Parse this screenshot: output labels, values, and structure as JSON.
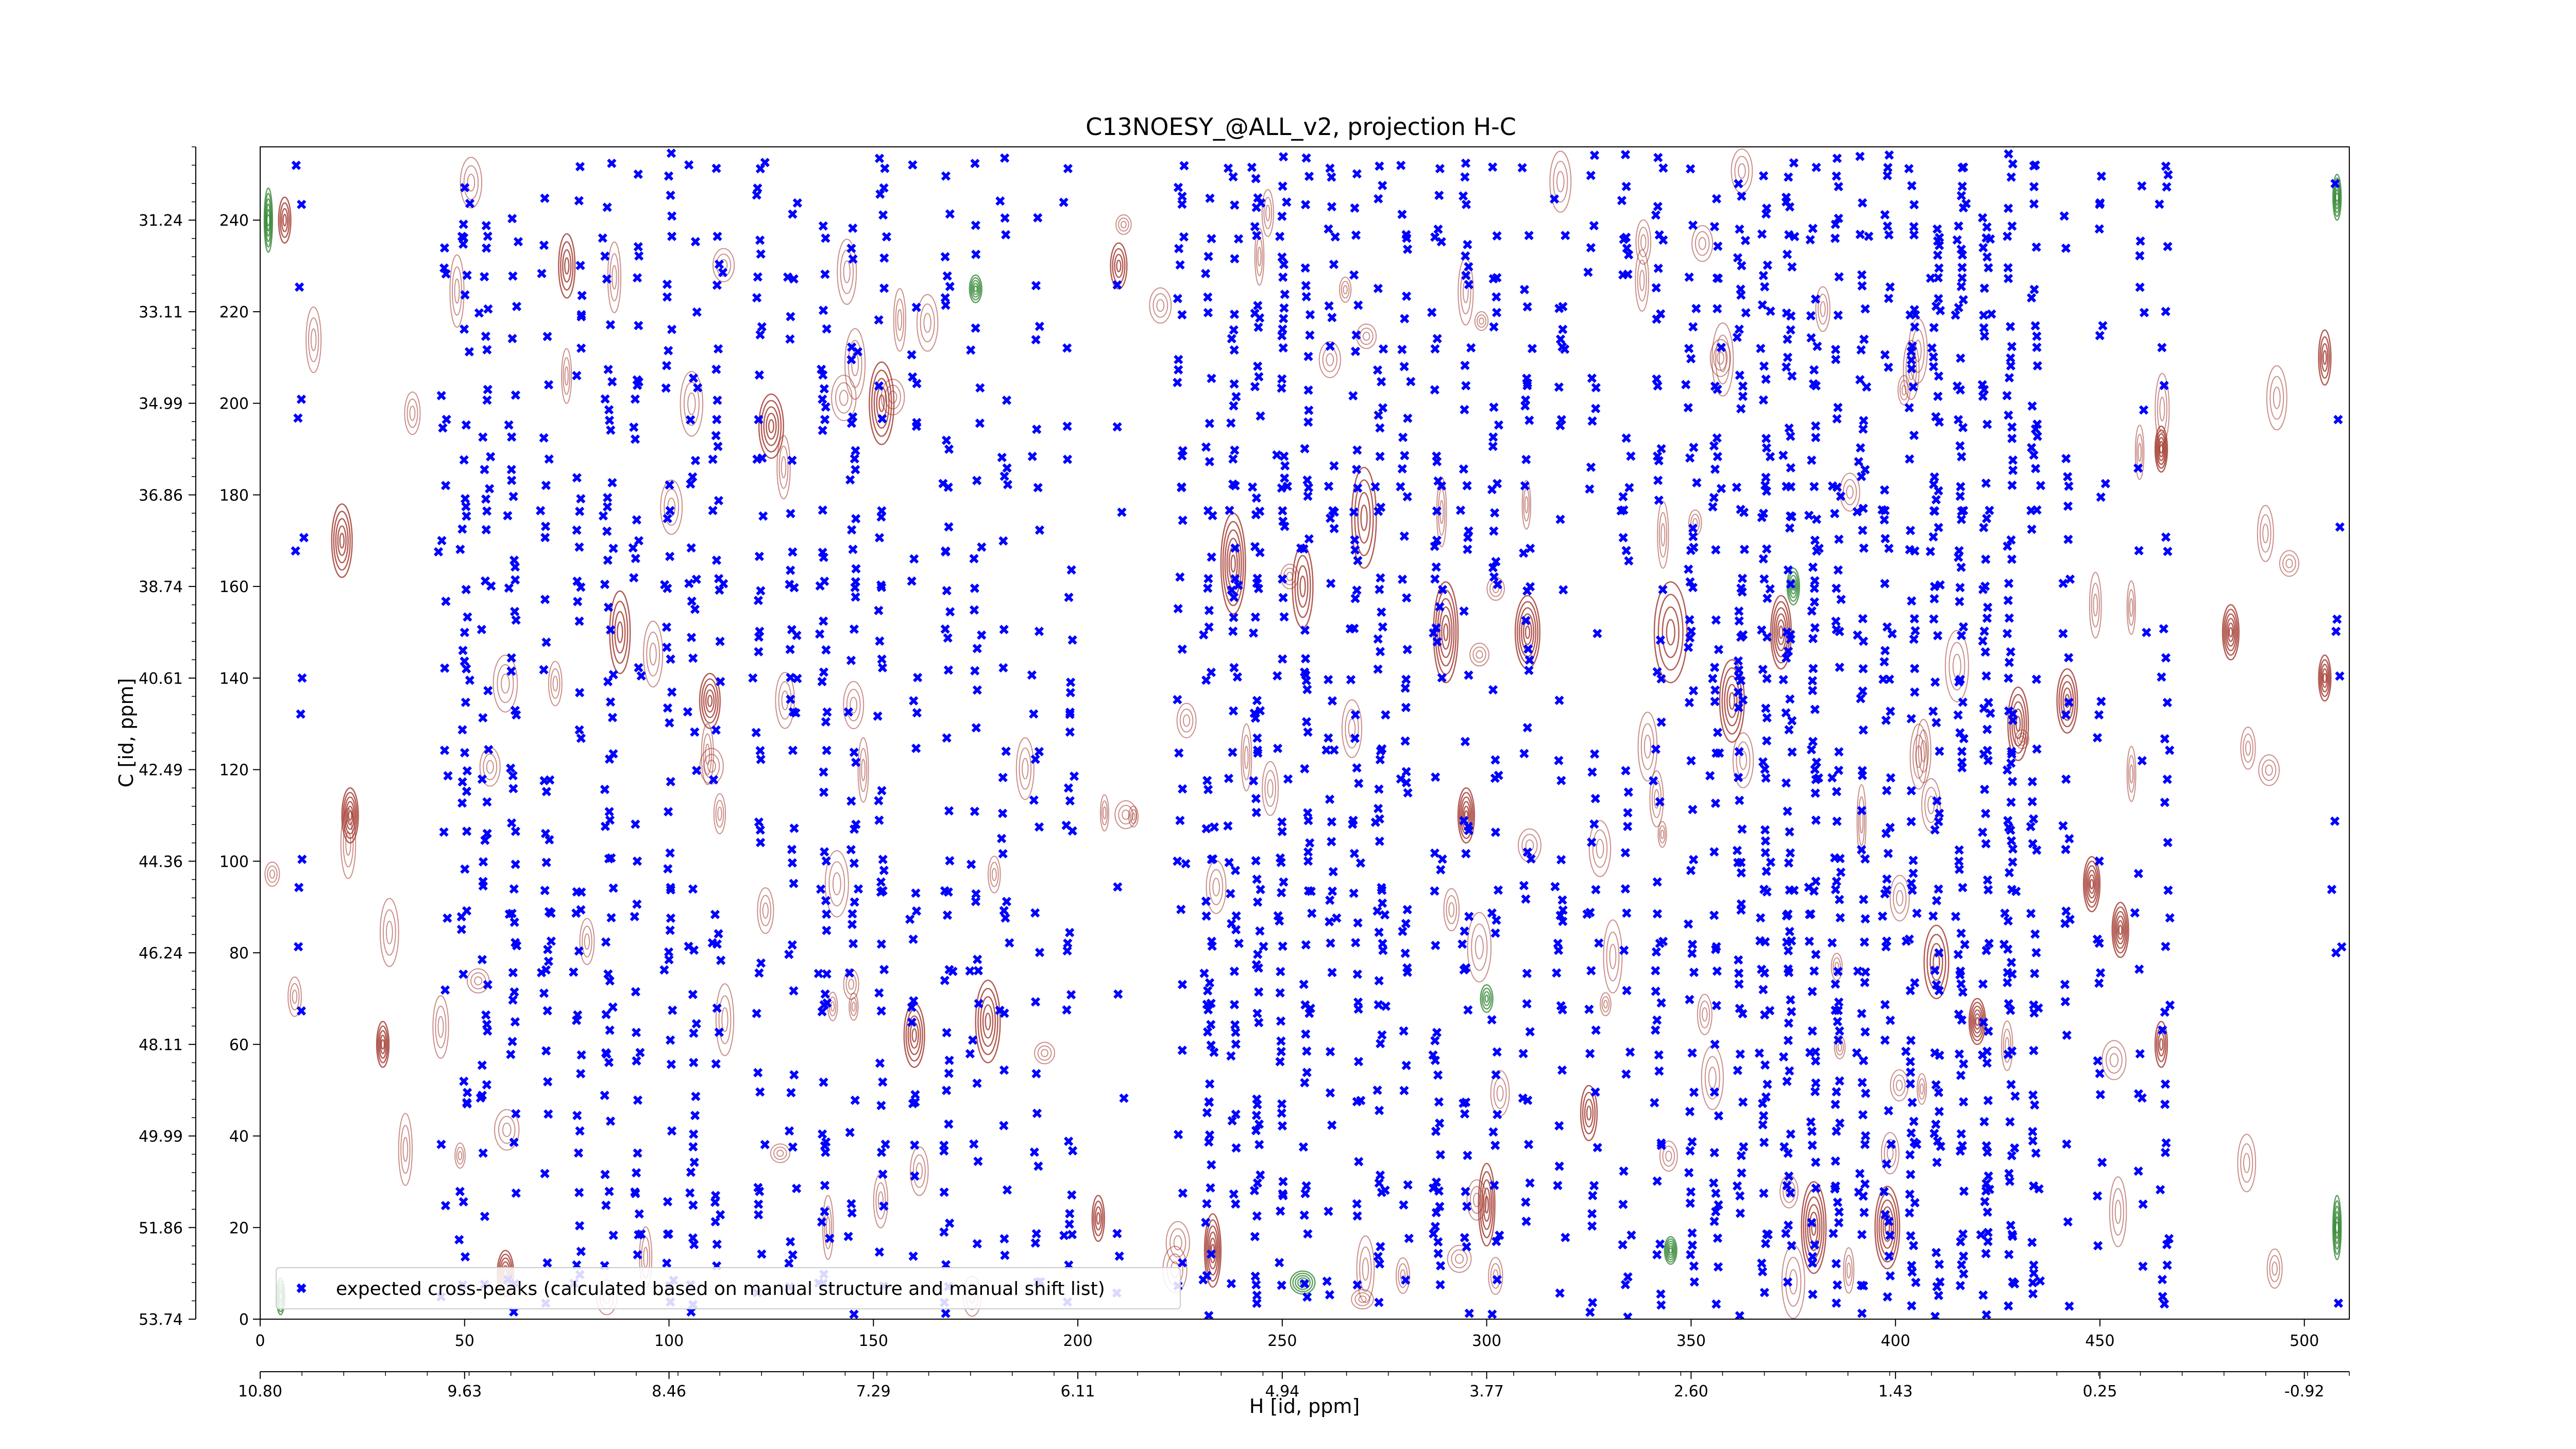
{
  "chart_data": {
    "type": "scatter",
    "title": "C13NOESY_@ALL_v2, projection H-C",
    "xlabel_bottom": "H [id, ppm]",
    "ylabel_left": "C [id, ppm]",
    "x_id_ticks": [
      "0",
      "50",
      "100",
      "150",
      "200",
      "250",
      "300",
      "350",
      "400",
      "450",
      "500"
    ],
    "x_id_tick_values": [
      0,
      50,
      100,
      150,
      200,
      250,
      300,
      350,
      400,
      450,
      500
    ],
    "x_ppm_ticks": [
      "10.80",
      "9.63",
      "8.46",
      "7.29",
      "6.11",
      "4.94",
      "3.77",
      "2.60",
      "1.43",
      "0.25",
      "-0.92"
    ],
    "y_id_ticks": [
      "0",
      "20",
      "40",
      "60",
      "80",
      "100",
      "120",
      "140",
      "160",
      "180",
      "200",
      "220",
      "240"
    ],
    "y_id_tick_values": [
      0,
      20,
      40,
      60,
      80,
      100,
      120,
      140,
      160,
      180,
      200,
      220,
      240
    ],
    "y_ppm_ticks": [
      "53.74",
      "51.86",
      "49.99",
      "48.11",
      "46.24",
      "44.36",
      "42.49",
      "40.61",
      "38.74",
      "36.86",
      "34.99",
      "33.11",
      "31.24"
    ],
    "xlim": [
      0,
      511
    ],
    "ylim": [
      0,
      256
    ],
    "legend": {
      "placement": "bottom-left",
      "entries": [
        "expected cross-peaks (calculated based on manual structure and manual shift list)"
      ]
    },
    "colors": {
      "peaks": "#0000ff",
      "positive_contours": "#a0342a",
      "negative_contours": "#3a8a3a"
    },
    "peak_columns": [
      {
        "x": 10,
        "density": 0.08
      },
      {
        "x": 45,
        "density": 0.15
      },
      {
        "x": 50,
        "density": 0.55
      },
      {
        "x": 55,
        "density": 0.45
      },
      {
        "x": 62,
        "density": 0.55
      },
      {
        "x": 70,
        "density": 0.4
      },
      {
        "x": 78,
        "density": 0.45
      },
      {
        "x": 85,
        "density": 0.55
      },
      {
        "x": 92,
        "density": 0.45
      },
      {
        "x": 100,
        "density": 0.6
      },
      {
        "x": 106,
        "density": 0.45
      },
      {
        "x": 112,
        "density": 0.35
      },
      {
        "x": 122,
        "density": 0.4
      },
      {
        "x": 130,
        "density": 0.45
      },
      {
        "x": 138,
        "density": 0.55
      },
      {
        "x": 145,
        "density": 0.45
      },
      {
        "x": 152,
        "density": 0.4
      },
      {
        "x": 160,
        "density": 0.35
      },
      {
        "x": 168,
        "density": 0.35
      },
      {
        "x": 175,
        "density": 0.3
      },
      {
        "x": 182,
        "density": 0.3
      },
      {
        "x": 190,
        "density": 0.25
      },
      {
        "x": 198,
        "density": 0.25
      },
      {
        "x": 210,
        "density": 0.15
      },
      {
        "x": 225,
        "density": 0.25
      },
      {
        "x": 232,
        "density": 0.5
      },
      {
        "x": 238,
        "density": 0.55
      },
      {
        "x": 244,
        "density": 0.6
      },
      {
        "x": 250,
        "density": 0.55
      },
      {
        "x": 256,
        "density": 0.6
      },
      {
        "x": 262,
        "density": 0.6
      },
      {
        "x": 268,
        "density": 0.55
      },
      {
        "x": 274,
        "density": 0.55
      },
      {
        "x": 280,
        "density": 0.5
      },
      {
        "x": 288,
        "density": 0.5
      },
      {
        "x": 295,
        "density": 0.45
      },
      {
        "x": 302,
        "density": 0.4
      },
      {
        "x": 310,
        "density": 0.35
      },
      {
        "x": 318,
        "density": 0.35
      },
      {
        "x": 326,
        "density": 0.4
      },
      {
        "x": 334,
        "density": 0.45
      },
      {
        "x": 342,
        "density": 0.45
      },
      {
        "x": 350,
        "density": 0.5
      },
      {
        "x": 356,
        "density": 0.55
      },
      {
        "x": 362,
        "density": 0.6
      },
      {
        "x": 368,
        "density": 0.65
      },
      {
        "x": 374,
        "density": 0.7
      },
      {
        "x": 380,
        "density": 0.7
      },
      {
        "x": 386,
        "density": 0.75
      },
      {
        "x": 392,
        "density": 0.7
      },
      {
        "x": 398,
        "density": 0.65
      },
      {
        "x": 404,
        "density": 0.7
      },
      {
        "x": 410,
        "density": 0.8
      },
      {
        "x": 416,
        "density": 0.85
      },
      {
        "x": 422,
        "density": 0.85
      },
      {
        "x": 428,
        "density": 0.8
      },
      {
        "x": 434,
        "density": 0.55
      },
      {
        "x": 442,
        "density": 0.25
      },
      {
        "x": 450,
        "density": 0.2
      },
      {
        "x": 460,
        "density": 0.25
      },
      {
        "x": 466,
        "density": 0.35
      },
      {
        "x": 508,
        "density": 0.15
      }
    ],
    "peak_rows": [
      8,
      18,
      28,
      38,
      48,
      58,
      68,
      76,
      82,
      88,
      94,
      100,
      108,
      118,
      124,
      132,
      140,
      150,
      160,
      168,
      176,
      182,
      188,
      196,
      204,
      212,
      220,
      228,
      236,
      244,
      252
    ],
    "strong_rows": [
      76,
      82,
      88,
      94,
      176,
      182
    ],
    "positive_contour_blobs": [
      {
        "x": 6,
        "y": 240,
        "w": 3,
        "h": 10
      },
      {
        "x": 20,
        "y": 170,
        "w": 5,
        "h": 16
      },
      {
        "x": 22,
        "y": 110,
        "w": 4,
        "h": 12
      },
      {
        "x": 30,
        "y": 60,
        "w": 3,
        "h": 10
      },
      {
        "x": 60,
        "y": 10,
        "w": 4,
        "h": 10
      },
      {
        "x": 75,
        "y": 230,
        "w": 4,
        "h": 14
      },
      {
        "x": 88,
        "y": 150,
        "w": 5,
        "h": 18
      },
      {
        "x": 110,
        "y": 135,
        "w": 5,
        "h": 12
      },
      {
        "x": 125,
        "y": 195,
        "w": 6,
        "h": 14
      },
      {
        "x": 152,
        "y": 200,
        "w": 6,
        "h": 18
      },
      {
        "x": 160,
        "y": 62,
        "w": 5,
        "h": 14
      },
      {
        "x": 178,
        "y": 65,
        "w": 6,
        "h": 18
      },
      {
        "x": 210,
        "y": 230,
        "w": 4,
        "h": 10
      },
      {
        "x": 205,
        "y": 22,
        "w": 3,
        "h": 10
      },
      {
        "x": 233,
        "y": 15,
        "w": 4,
        "h": 16
      },
      {
        "x": 238,
        "y": 165,
        "w": 6,
        "h": 22
      },
      {
        "x": 255,
        "y": 160,
        "w": 5,
        "h": 18
      },
      {
        "x": 270,
        "y": 175,
        "w": 6,
        "h": 22
      },
      {
        "x": 290,
        "y": 150,
        "w": 6,
        "h": 22
      },
      {
        "x": 295,
        "y": 110,
        "w": 4,
        "h": 12
      },
      {
        "x": 300,
        "y": 25,
        "w": 4,
        "h": 18
      },
      {
        "x": 310,
        "y": 150,
        "w": 6,
        "h": 16
      },
      {
        "x": 325,
        "y": 45,
        "w": 4,
        "h": 12
      },
      {
        "x": 345,
        "y": 150,
        "w": 8,
        "h": 22
      },
      {
        "x": 360,
        "y": 135,
        "w": 6,
        "h": 18
      },
      {
        "x": 372,
        "y": 150,
        "w": 5,
        "h": 16
      },
      {
        "x": 380,
        "y": 20,
        "w": 6,
        "h": 20
      },
      {
        "x": 398,
        "y": 20,
        "w": 6,
        "h": 18
      },
      {
        "x": 410,
        "y": 78,
        "w": 6,
        "h": 16
      },
      {
        "x": 420,
        "y": 65,
        "w": 4,
        "h": 10
      },
      {
        "x": 430,
        "y": 130,
        "w": 5,
        "h": 16
      },
      {
        "x": 442,
        "y": 135,
        "w": 5,
        "h": 14
      },
      {
        "x": 448,
        "y": 95,
        "w": 4,
        "h": 12
      },
      {
        "x": 455,
        "y": 85,
        "w": 4,
        "h": 12
      },
      {
        "x": 465,
        "y": 190,
        "w": 3,
        "h": 10
      },
      {
        "x": 465,
        "y": 60,
        "w": 3,
        "h": 10
      },
      {
        "x": 482,
        "y": 150,
        "w": 4,
        "h": 12
      },
      {
        "x": 505,
        "y": 210,
        "w": 3,
        "h": 12
      },
      {
        "x": 505,
        "y": 140,
        "w": 3,
        "h": 10
      }
    ],
    "negative_contour_blobs": [
      {
        "x": 2,
        "y": 240,
        "w": 2,
        "h": 14
      },
      {
        "x": 5,
        "y": 5,
        "w": 2,
        "h": 8
      },
      {
        "x": 175,
        "y": 225,
        "w": 3,
        "h": 6
      },
      {
        "x": 255,
        "y": 8,
        "w": 6,
        "h": 5
      },
      {
        "x": 300,
        "y": 70,
        "w": 3,
        "h": 6
      },
      {
        "x": 345,
        "y": 15,
        "w": 3,
        "h": 6
      },
      {
        "x": 375,
        "y": 160,
        "w": 3,
        "h": 8
      },
      {
        "x": 508,
        "y": 245,
        "w": 2,
        "h": 10
      },
      {
        "x": 508,
        "y": 20,
        "w": 2,
        "h": 14
      }
    ]
  }
}
